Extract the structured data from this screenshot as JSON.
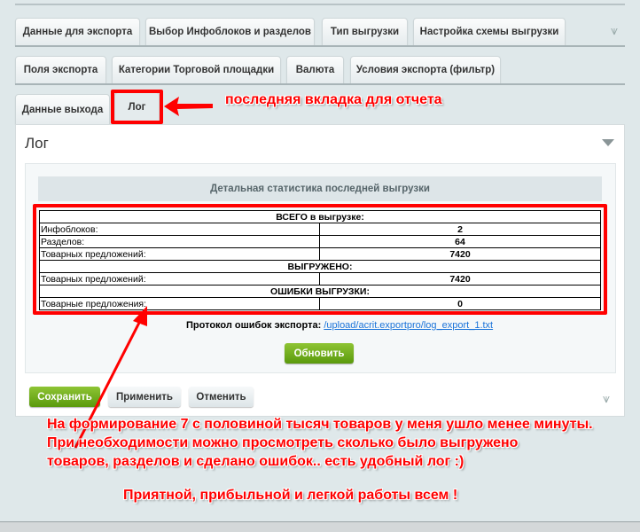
{
  "tabs_row1": [
    "Данные для экспорта",
    "Выбор Инфоблоков и разделов",
    "Тип выгрузки",
    "Настройка схемы выгрузки"
  ],
  "tabs_row2": [
    "Поля экспорта",
    "Категории Торговой площадки",
    "Валюта",
    "Условия экспорта (фильтр)"
  ],
  "tabs_row3": [
    "Данные выхода",
    "Лог"
  ],
  "annotation_tab": "последняя вкладка для отчета",
  "panel": {
    "title": "Лог",
    "stats_header": "Детальная статистика последней выгрузки",
    "table": {
      "total_header": "ВСЕГО в выгрузке:",
      "total_rows": [
        {
          "label": "Инфоблоков:",
          "value": "2"
        },
        {
          "label": "Разделов:",
          "value": "64"
        },
        {
          "label": "Товарных предложений:",
          "value": "7420"
        }
      ],
      "exported_header": "ВЫГРУЖЕНО:",
      "exported_rows": [
        {
          "label": "Товарных предложений:",
          "value": "7420"
        }
      ],
      "errors_header": "ОШИБКИ ВЫГРУЗКИ:",
      "errors_rows": [
        {
          "label": "Товарные предложения:",
          "value": "0"
        }
      ]
    },
    "protocol_label": "Протокол ошибок экспорта:",
    "protocol_link": "/upload/acrit.exportpro/log_export_1.txt",
    "refresh": "Обновить"
  },
  "footer": {
    "save": "Сохранить",
    "apply": "Применить",
    "cancel": "Отменить"
  },
  "annotation_lines": [
    "На формирование 7 с половиной тысяч товаров у меня ушло менее минуты.",
    "При необходимости можно просмотреть сколько было выгружено",
    "товаров, разделов и сделано ошибок.. есть удобный лог :)"
  ],
  "annotation_wish": "Приятной, прибыльной и легкой работы всем !",
  "colors": {
    "annotation": "#ff0000",
    "accent_green": "#6aaa1a",
    "link": "#1a73d9"
  }
}
